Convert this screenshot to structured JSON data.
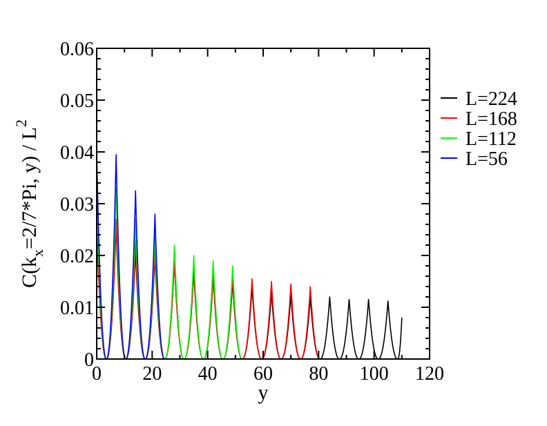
{
  "chart_data": {
    "type": "line",
    "title": "",
    "xlabel": "y",
    "ylabel": {
      "main": "C(k",
      "sub": "x",
      "rest": "=2/7*Pi, y) / L",
      "sup": "2"
    },
    "xlim": [
      0,
      120
    ],
    "ylim": [
      0,
      0.06
    ],
    "x_ticks": [
      0,
      20,
      40,
      60,
      80,
      100,
      120
    ],
    "x_tick_labels": [
      "0",
      "20",
      "40",
      "60",
      "80",
      "100",
      "120"
    ],
    "y_ticks": [
      0,
      0.01,
      0.02,
      0.03,
      0.04,
      0.05,
      0.06
    ],
    "y_tick_labels": [
      "0",
      "0.01",
      "0.02",
      "0.03",
      "0.04",
      "0.05",
      "0.06"
    ],
    "grid": false,
    "legend_position": "right",
    "peak_period": 7,
    "series": [
      {
        "name": "L=224",
        "color": "#000000",
        "x_range": [
          0,
          110
        ],
        "peaks_x": [
          0,
          7,
          14,
          21,
          28,
          35,
          42,
          49,
          56,
          63,
          70,
          77,
          84,
          91,
          98,
          105
        ],
        "peaks_y": [
          0.026,
          0.026,
          0.021,
          0.02,
          0.019,
          0.017,
          0.016,
          0.015,
          0.014,
          0.013,
          0.0125,
          0.012,
          0.012,
          0.0115,
          0.0115,
          0.0112
        ],
        "end_value": 0.008
      },
      {
        "name": "L=168",
        "color": "#ff0000",
        "x_range": [
          0,
          80
        ],
        "peaks_x": [
          0,
          7,
          14,
          21,
          28,
          35,
          42,
          49,
          56,
          63,
          70,
          77
        ],
        "peaks_y": [
          0.027,
          0.027,
          0.023,
          0.021,
          0.019,
          0.0175,
          0.0165,
          0.016,
          0.0155,
          0.015,
          0.0145,
          0.014
        ]
      },
      {
        "name": "L=112",
        "color": "#00ff00",
        "x_range": [
          0,
          56
        ],
        "peaks_x": [
          0,
          7,
          14,
          21,
          28,
          35,
          42,
          49
        ],
        "peaks_y": [
          0.033,
          0.033,
          0.027,
          0.024,
          0.022,
          0.02,
          0.019,
          0.018
        ]
      },
      {
        "name": "L=56",
        "color": "#0000ff",
        "x_range": [
          0,
          28
        ],
        "peaks_x": [
          0,
          7,
          14,
          21
        ],
        "peaks_y": [
          0.04,
          0.0395,
          0.0325,
          0.028
        ]
      }
    ]
  }
}
